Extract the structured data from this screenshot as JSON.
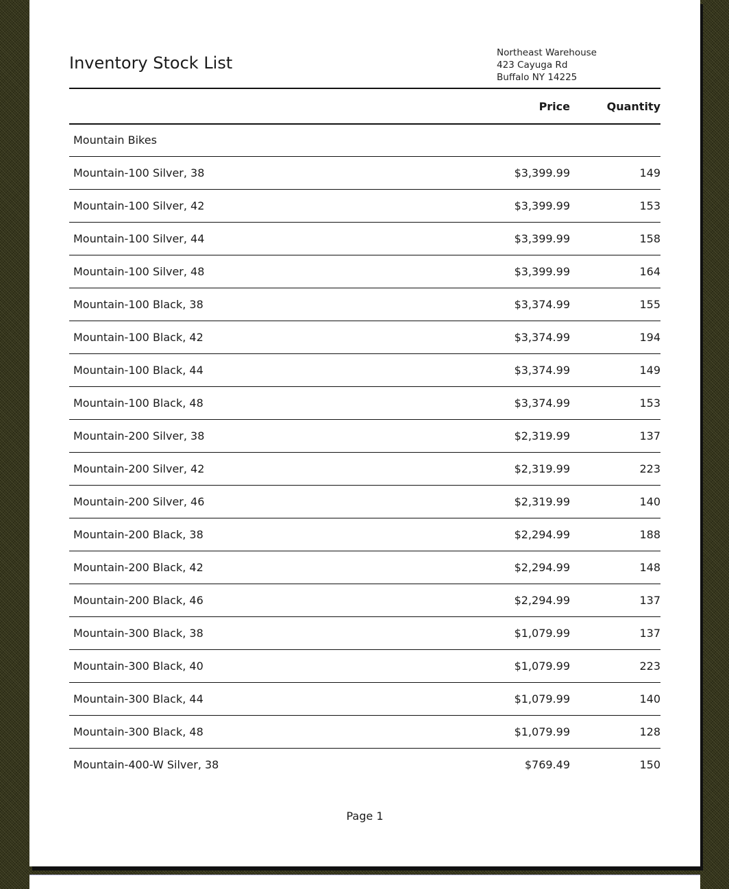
{
  "title": "Inventory Stock List",
  "address": [
    "Northeast Warehouse",
    "423 Cayuga Rd",
    "Buffalo NY 14225"
  ],
  "columns": {
    "price": "Price",
    "quantity": "Quantity"
  },
  "group": "Mountain Bikes",
  "rows": [
    {
      "name": "Mountain-100 Silver, 38",
      "price": "$3,399.99",
      "qty": "149"
    },
    {
      "name": "Mountain-100 Silver, 42",
      "price": "$3,399.99",
      "qty": "153"
    },
    {
      "name": "Mountain-100 Silver, 44",
      "price": "$3,399.99",
      "qty": "158"
    },
    {
      "name": "Mountain-100 Silver, 48",
      "price": "$3,399.99",
      "qty": "164"
    },
    {
      "name": "Mountain-100 Black, 38",
      "price": "$3,374.99",
      "qty": "155"
    },
    {
      "name": "Mountain-100 Black, 42",
      "price": "$3,374.99",
      "qty": "194"
    },
    {
      "name": "Mountain-100 Black, 44",
      "price": "$3,374.99",
      "qty": "149"
    },
    {
      "name": "Mountain-100 Black, 48",
      "price": "$3,374.99",
      "qty": "153"
    },
    {
      "name": "Mountain-200 Silver, 38",
      "price": "$2,319.99",
      "qty": "137"
    },
    {
      "name": "Mountain-200 Silver, 42",
      "price": "$2,319.99",
      "qty": "223"
    },
    {
      "name": "Mountain-200 Silver, 46",
      "price": "$2,319.99",
      "qty": "140"
    },
    {
      "name": "Mountain-200 Black, 38",
      "price": "$2,294.99",
      "qty": "188"
    },
    {
      "name": "Mountain-200 Black, 42",
      "price": "$2,294.99",
      "qty": "148"
    },
    {
      "name": "Mountain-200 Black, 46",
      "price": "$2,294.99",
      "qty": "137"
    },
    {
      "name": "Mountain-300 Black, 38",
      "price": "$1,079.99",
      "qty": "137"
    },
    {
      "name": "Mountain-300 Black, 40",
      "price": "$1,079.99",
      "qty": "223"
    },
    {
      "name": "Mountain-300 Black, 44",
      "price": "$1,079.99",
      "qty": "140"
    },
    {
      "name": "Mountain-300 Black, 48",
      "price": "$1,079.99",
      "qty": "128"
    },
    {
      "name": "Mountain-400-W Silver, 38",
      "price": "$769.49",
      "qty": "150"
    }
  ],
  "footer": "Page 1"
}
